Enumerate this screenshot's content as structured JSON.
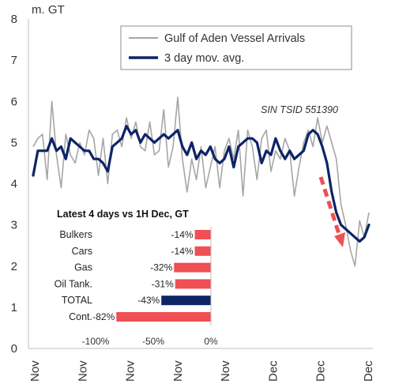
{
  "chart_data": [
    {
      "type": "line",
      "ylabel": "m. GT",
      "ylim": [
        0,
        8
      ],
      "y_ticks": [
        0,
        1,
        2,
        3,
        4,
        5,
        6,
        7,
        8
      ],
      "x_tick_labels": [
        "Nov",
        "Nov",
        "Nov",
        "Nov",
        "Nov",
        "Dec",
        "Dec",
        "Dec"
      ],
      "grid": false,
      "legend_position": "top-right",
      "x": [
        1,
        2,
        3,
        4,
        5,
        6,
        7,
        8,
        9,
        10,
        11,
        12,
        13,
        14,
        15,
        16,
        17,
        18,
        19,
        20,
        21,
        22,
        23,
        24,
        25,
        26,
        27,
        28,
        29,
        30,
        31,
        32,
        33,
        34,
        35,
        36,
        37,
        38,
        39,
        40,
        41,
        42,
        43,
        44,
        45,
        46,
        47,
        48,
        49,
        50,
        51,
        52,
        53,
        54,
        55,
        56,
        57,
        58,
        59,
        60,
        61,
        62,
        63,
        64,
        65,
        66,
        67,
        68,
        69,
        70,
        71,
        72,
        73
      ],
      "series": [
        {
          "name": "Gulf of Aden Vessel Arrivals",
          "color": "#a6a6a6",
          "style": "thin",
          "values": [
            4.9,
            5.1,
            5.2,
            4.1,
            6.0,
            4.7,
            3.9,
            5.2,
            4.7,
            4.5,
            5.0,
            4.7,
            5.3,
            5.1,
            4.2,
            5.1,
            4.0,
            5.2,
            5.3,
            4.9,
            5.6,
            5.1,
            5.5,
            4.9,
            4.8,
            5.5,
            4.7,
            4.8,
            5.8,
            4.4,
            4.9,
            6.1,
            4.6,
            3.8,
            4.6,
            4.1,
            4.9,
            3.9,
            4.4,
            4.9,
            3.9,
            4.8,
            5.1,
            4.6,
            5.3,
            3.7,
            5.3,
            4.9,
            4.1,
            5.1,
            5.3,
            4.3,
            4.8,
            4.6,
            5.1,
            4.8,
            3.7,
            4.4,
            5.0,
            5.3,
            4.9,
            5.6,
            5.0,
            5.4,
            5.0,
            4.6,
            3.5,
            3.0,
            2.4,
            2.0,
            3.1,
            2.7,
            3.3
          ]
        },
        {
          "name": "3 day mov. avg.",
          "color": "#0d2466",
          "style": "thick",
          "values": [
            4.2,
            4.8,
            4.8,
            4.8,
            5.1,
            4.8,
            4.9,
            4.6,
            5.1,
            5.0,
            4.9,
            4.8,
            4.8,
            4.6,
            4.6,
            4.5,
            4.3,
            4.9,
            5.0,
            5.1,
            5.4,
            5.2,
            5.3,
            5.0,
            5.2,
            5.1,
            5.0,
            5.1,
            5.2,
            5.1,
            5.2,
            5.3,
            4.9,
            4.7,
            5.0,
            4.6,
            4.8,
            4.7,
            4.9,
            4.6,
            4.5,
            4.6,
            4.9,
            4.4,
            4.9,
            5.0,
            5.1,
            5.1,
            5.0,
            4.5,
            4.8,
            4.7,
            5.1,
            4.8,
            4.6,
            4.8,
            4.6,
            4.7,
            4.8,
            5.2,
            5.3,
            5.2,
            4.9,
            4.5,
            3.8,
            3.3,
            3.0,
            2.9,
            2.8,
            2.7,
            2.6,
            2.7,
            3.0
          ]
        }
      ],
      "annotations": [
        "SIN TSID 551390"
      ]
    },
    {
      "type": "bar",
      "orientation": "horizontal",
      "title": "Latest 4 days vs 1H Dec, GT",
      "categories": [
        "Bulkers",
        "Cars",
        "Gas",
        "Oil Tank.",
        "TOTAL",
        "Cont."
      ],
      "values": [
        -14,
        -14,
        -32,
        -31,
        -43,
        -82
      ],
      "value_labels": [
        "-14%",
        "-14%",
        "-32%",
        "-31%",
        "-43%",
        "-82%"
      ],
      "colors": [
        "#f04f54",
        "#f04f54",
        "#f04f54",
        "#f04f54",
        "#0d2466",
        "#f04f54"
      ],
      "xlim": [
        -100,
        0
      ],
      "x_tick_labels": [
        "-100%",
        "-50%",
        "0%"
      ]
    }
  ]
}
